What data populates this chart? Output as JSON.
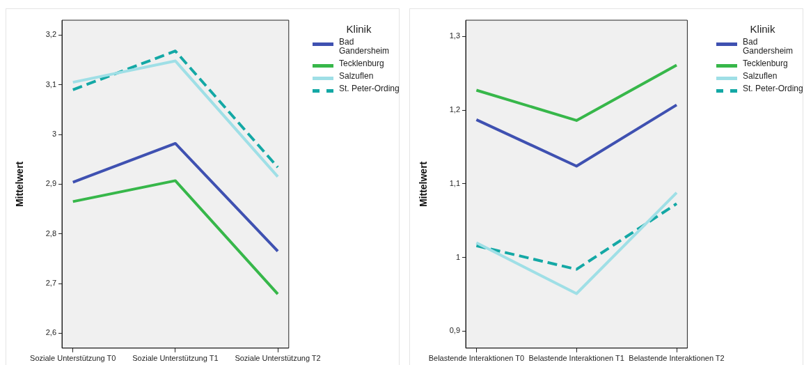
{
  "chart_data": [
    {
      "type": "line",
      "ylabel": "Mittelwert",
      "legend_title": "Klinik",
      "legend": "right",
      "grid": false,
      "marker": "none",
      "categories": [
        "Soziale Unterstützung T0",
        "Soziale Unterstützung T1",
        "Soziale Unterstützung T2"
      ],
      "ylim": [
        2.57,
        3.23
      ],
      "yticks": [
        {
          "value": 2.6,
          "label": "2,6"
        },
        {
          "value": 2.7,
          "label": "2,7"
        },
        {
          "value": 2.8,
          "label": "2,8"
        },
        {
          "value": 2.9,
          "label": "2,9"
        },
        3,
        {
          "value": 3.1,
          "label": "3,1"
        },
        {
          "value": 3.2,
          "label": "3,2"
        }
      ],
      "series": [
        {
          "name": "Bad Gandersheim",
          "color": "#3f51b1",
          "line_style": "solid",
          "values": [
            2.904,
            2.982,
            2.765
          ]
        },
        {
          "name": "Tecklenburg",
          "color": "#37b74a",
          "line_style": "solid",
          "values": [
            2.865,
            2.907,
            2.679
          ]
        },
        {
          "name": "Salzuflen",
          "color": "#9fdfe6",
          "line_style": "solid",
          "values": [
            3.105,
            3.148,
            2.915
          ]
        },
        {
          "name": "St. Peter-Ording",
          "color": "#14a8a5",
          "line_style": "dashed",
          "values": [
            3.09,
            3.168,
            2.934
          ]
        }
      ]
    },
    {
      "type": "line",
      "ylabel": "Mittelwert",
      "legend_title": "Klinik",
      "legend": "right",
      "grid": false,
      "marker": "none",
      "categories": [
        "Belastende Interaktionen T0",
        "Belastende Interaktionen T1",
        "Belastende Interaktionen T2"
      ],
      "ylim": [
        0.877,
        1.322
      ],
      "yticks": [
        {
          "value": 0.9,
          "label": "0,9"
        },
        1,
        {
          "value": 1.1,
          "label": "1,1"
        },
        {
          "value": 1.2,
          "label": "1,2"
        },
        {
          "value": 1.3,
          "label": "1,3"
        }
      ],
      "series": [
        {
          "name": "Bad Gandersheim",
          "color": "#3f51b1",
          "line_style": "solid",
          "values": [
            1.187,
            1.124,
            1.207
          ]
        },
        {
          "name": "Tecklenburg",
          "color": "#37b74a",
          "line_style": "solid",
          "values": [
            1.227,
            1.186,
            1.261
          ]
        },
        {
          "name": "Salzuflen",
          "color": "#9fdfe6",
          "line_style": "solid",
          "values": [
            1.02,
            0.951,
            1.088
          ]
        },
        {
          "name": "St. Peter-Ording",
          "color": "#14a8a5",
          "line_style": "dashed",
          "values": [
            1.016,
            0.984,
            1.073
          ]
        }
      ]
    }
  ]
}
